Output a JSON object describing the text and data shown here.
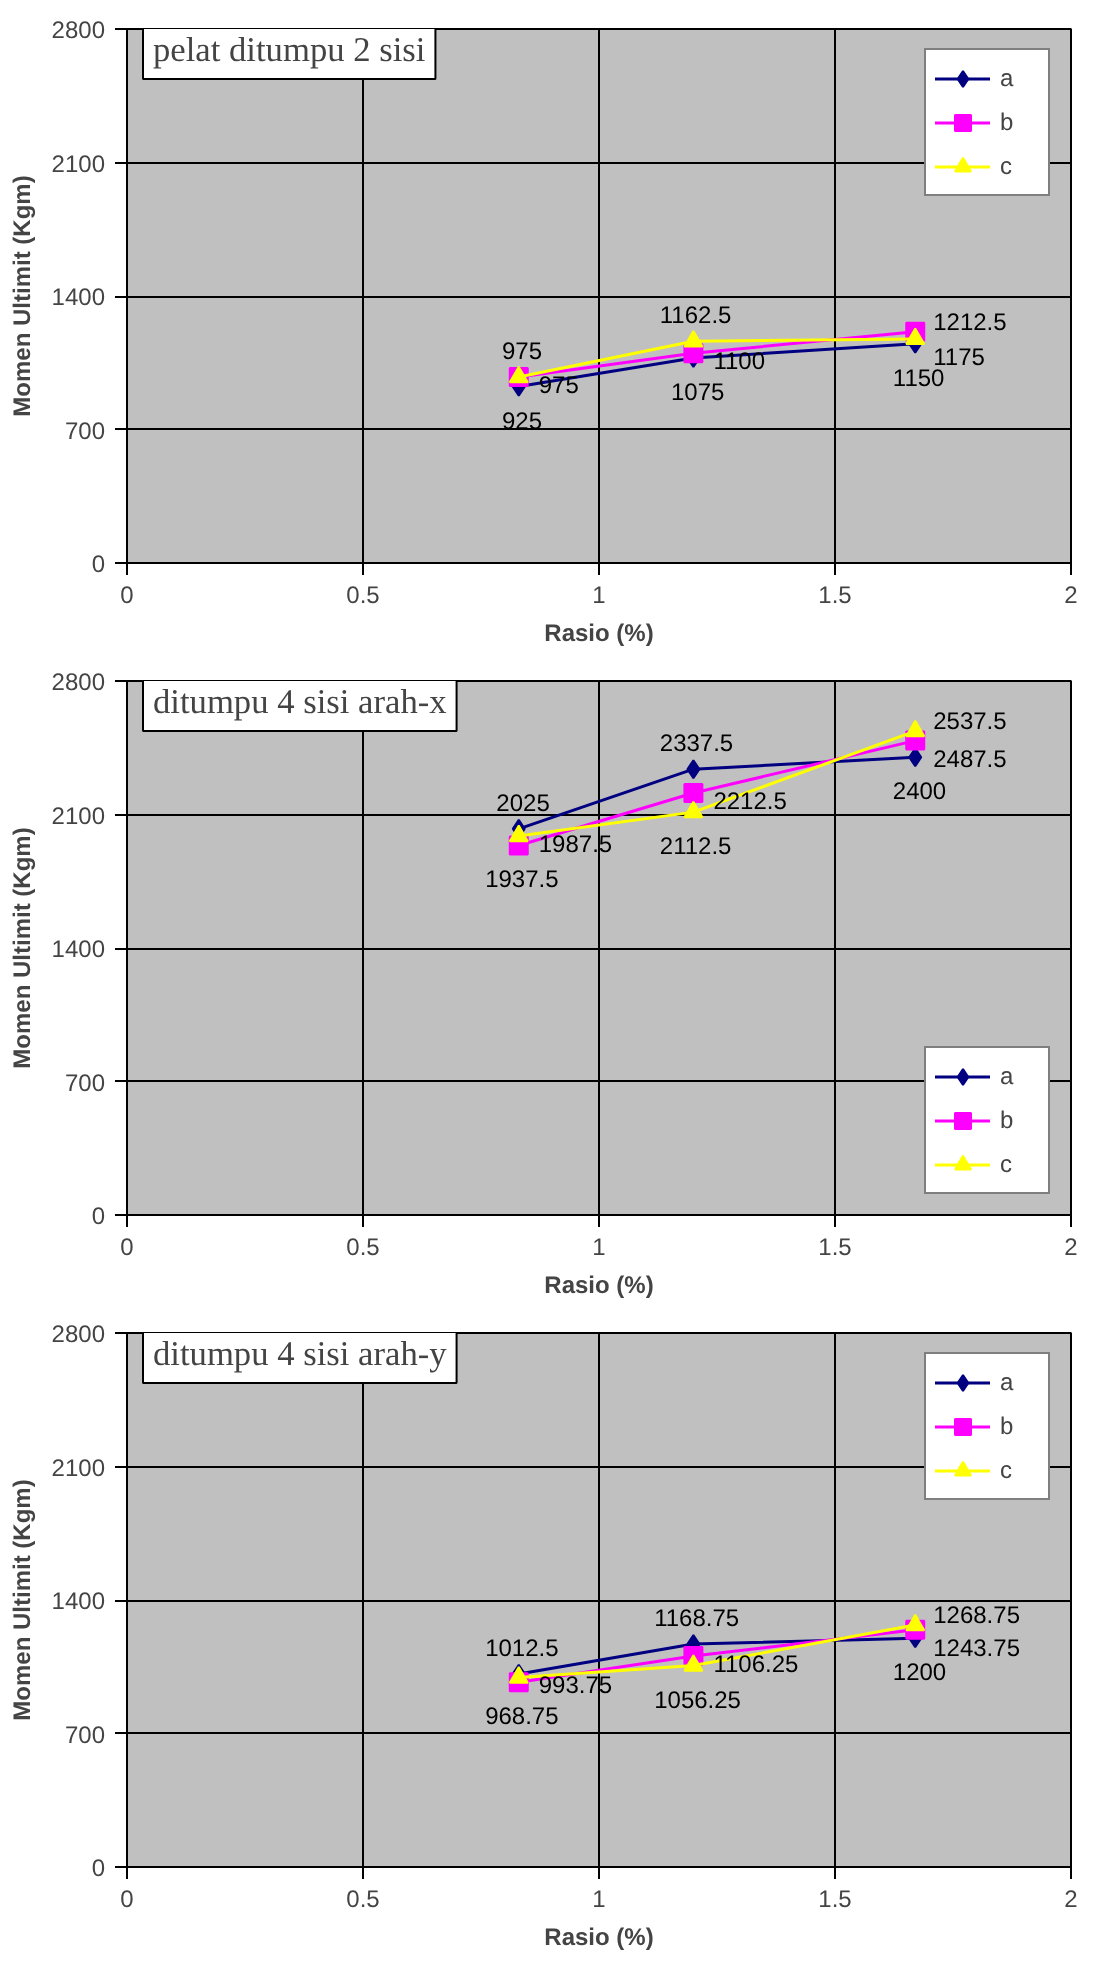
{
  "chart_data": [
    {
      "type": "line",
      "title": "pelat ditumpu 2 sisi",
      "xlabel": "Rasio (%)",
      "ylabel": "Momen Ultimit (Kgm)",
      "x": [
        0.83,
        1.2,
        1.67
      ],
      "xlim": [
        0,
        2
      ],
      "xticks": [
        0,
        0.5,
        1,
        1.5,
        2
      ],
      "ylim": [
        0,
        2800
      ],
      "yticks": [
        0,
        700,
        1400,
        2100,
        2800
      ],
      "grid": true,
      "legend": "top right",
      "data_labels": true,
      "series": [
        {
          "name": "a",
          "color": "#000080",
          "marker": "diamond",
          "values": [
            925,
            1075,
            1150
          ]
        },
        {
          "name": "b",
          "color": "#ff00ff",
          "marker": "square",
          "values": [
            975,
            1100,
            1212.5
          ]
        },
        {
          "name": "c",
          "color": "#ffff00",
          "marker": "triangle",
          "values": [
            975,
            1162.5,
            1175
          ]
        }
      ]
    },
    {
      "type": "line",
      "title": "ditumpu 4 sisi arah-x",
      "xlabel": "Rasio (%)",
      "ylabel": "Momen Ultimit (Kgm)",
      "x": [
        0.83,
        1.2,
        1.67
      ],
      "xlim": [
        0,
        2
      ],
      "xticks": [
        0,
        0.5,
        1,
        1.5,
        2
      ],
      "ylim": [
        0,
        2800
      ],
      "yticks": [
        0,
        700,
        1400,
        2100,
        2800
      ],
      "grid": true,
      "legend": "bottom right",
      "data_labels": true,
      "series": [
        {
          "name": "a",
          "color": "#000080",
          "marker": "diamond",
          "values": [
            2025,
            2337.5,
            2400
          ]
        },
        {
          "name": "b",
          "color": "#ff00ff",
          "marker": "square",
          "values": [
            1937.5,
            2212.5,
            2487.5
          ]
        },
        {
          "name": "c",
          "color": "#ffff00",
          "marker": "triangle",
          "values": [
            1987.5,
            2112.5,
            2537.5
          ]
        }
      ]
    },
    {
      "type": "line",
      "title": "ditumpu 4 sisi arah-y",
      "xlabel": "Rasio (%)",
      "ylabel": "Momen Ultimit (Kgm)",
      "x": [
        0.83,
        1.2,
        1.67
      ],
      "xlim": [
        0,
        2
      ],
      "xticks": [
        0,
        0.5,
        1,
        1.5,
        2
      ],
      "ylim": [
        0,
        2800
      ],
      "yticks": [
        0,
        700,
        1400,
        2100,
        2800
      ],
      "grid": true,
      "legend": "top right",
      "data_labels": true,
      "series": [
        {
          "name": "a",
          "color": "#000080",
          "marker": "diamond",
          "values": [
            1012.5,
            1168.75,
            1200
          ]
        },
        {
          "name": "b",
          "color": "#ff00ff",
          "marker": "square",
          "values": [
            968.75,
            1106.25,
            1243.75
          ]
        },
        {
          "name": "c",
          "color": "#ffff00",
          "marker": "triangle",
          "values": [
            993.75,
            1056.25,
            1268.75
          ]
        }
      ]
    }
  ]
}
